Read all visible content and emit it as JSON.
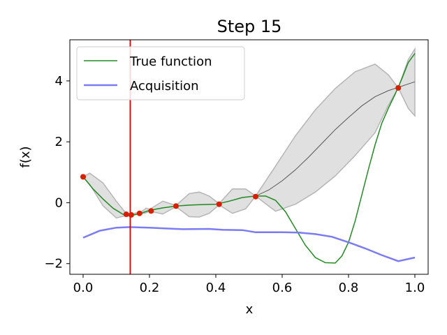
{
  "chart_data": {
    "type": "line",
    "title": "Step 15",
    "xlabel": "x",
    "ylabel": "f(x)",
    "xlim": [
      -0.04,
      1.04
    ],
    "ylim": [
      -2.35,
      5.35
    ],
    "x_ticks": [
      0.0,
      0.2,
      0.4,
      0.6,
      0.8,
      1.0
    ],
    "x_tick_labels": [
      "0.0",
      "0.2",
      "0.4",
      "0.6",
      "0.8",
      "1.0"
    ],
    "y_ticks": [
      -2,
      0,
      2,
      4
    ],
    "y_tick_labels": [
      "−2",
      "0",
      "2",
      "4"
    ],
    "grid": false,
    "legend_position": "upper-left",
    "colors": {
      "true_function": "#228b22",
      "acquisition": "#7b7bf5",
      "gp_mean": "#555555",
      "band_fill": "#e0e0e0",
      "band_edge": "#b5b5b5",
      "observed": "#d62000",
      "next_query": "#e00000"
    },
    "series": [
      {
        "name": "True function",
        "x": [
          0.0,
          0.03,
          0.06,
          0.09,
          0.12,
          0.14,
          0.17,
          0.2,
          0.24,
          0.28,
          0.32,
          0.36,
          0.4,
          0.44,
          0.48,
          0.52,
          0.55,
          0.58,
          0.61,
          0.64,
          0.67,
          0.7,
          0.73,
          0.76,
          0.78,
          0.8,
          0.82,
          0.84,
          0.86,
          0.88,
          0.9,
          0.92,
          0.94,
          0.96,
          0.98,
          1.0
        ],
        "y": [
          0.85,
          0.45,
          0.12,
          -0.18,
          -0.38,
          -0.42,
          -0.36,
          -0.25,
          -0.17,
          -0.11,
          -0.08,
          -0.06,
          -0.05,
          0.05,
          0.17,
          0.22,
          0.22,
          0.08,
          -0.3,
          -0.85,
          -1.4,
          -1.8,
          -1.97,
          -1.98,
          -1.75,
          -1.3,
          -0.6,
          0.25,
          1.1,
          1.9,
          2.6,
          3.1,
          3.55,
          4.05,
          4.6,
          4.9
        ]
      },
      {
        "name": "Acquisition",
        "x": [
          0.0,
          0.05,
          0.1,
          0.14,
          0.2,
          0.3,
          0.38,
          0.42,
          0.48,
          0.52,
          0.6,
          0.65,
          0.7,
          0.75,
          0.8,
          0.85,
          0.9,
          0.95,
          1.0
        ],
        "y": [
          -1.15,
          -0.92,
          -0.82,
          -0.8,
          -0.82,
          -0.87,
          -0.86,
          -0.89,
          -0.9,
          -0.97,
          -0.97,
          -0.98,
          -1.03,
          -1.12,
          -1.3,
          -1.5,
          -1.72,
          -1.92,
          -1.8
        ]
      }
    ],
    "gp_mean": {
      "x": [
        0.0,
        0.03,
        0.06,
        0.09,
        0.12,
        0.14,
        0.17,
        0.2,
        0.24,
        0.28,
        0.32,
        0.36,
        0.4,
        0.44,
        0.48,
        0.52,
        0.56,
        0.6,
        0.64,
        0.68,
        0.72,
        0.76,
        0.8,
        0.84,
        0.88,
        0.92,
        0.95,
        0.98,
        1.0
      ],
      "y": [
        0.85,
        0.45,
        0.12,
        -0.18,
        -0.38,
        -0.42,
        -0.36,
        -0.25,
        -0.17,
        -0.11,
        -0.08,
        -0.06,
        -0.05,
        0.05,
        0.17,
        0.22,
        0.42,
        0.72,
        1.08,
        1.5,
        1.95,
        2.4,
        2.8,
        3.18,
        3.48,
        3.68,
        3.79,
        3.9,
        3.97
      ]
    },
    "confidence_band": {
      "x": [
        0.0,
        0.02,
        0.06,
        0.1,
        0.13,
        0.14,
        0.16,
        0.17,
        0.19,
        0.2,
        0.24,
        0.28,
        0.32,
        0.35,
        0.38,
        0.41,
        0.45,
        0.49,
        0.52,
        0.58,
        0.64,
        0.7,
        0.76,
        0.82,
        0.88,
        0.92,
        0.95,
        0.98,
        1.0
      ],
      "upper": [
        0.85,
        0.97,
        0.65,
        0.05,
        -0.36,
        -0.4,
        -0.33,
        -0.34,
        -0.18,
        -0.22,
        0.05,
        -0.09,
        0.3,
        0.35,
        0.22,
        -0.03,
        0.45,
        0.45,
        0.22,
        1.2,
        2.2,
        3.05,
        3.75,
        4.3,
        4.55,
        4.2,
        3.77,
        4.7,
        5.05
      ],
      "lower": [
        0.85,
        0.6,
        -0.1,
        -0.5,
        -0.42,
        -0.44,
        -0.39,
        -0.38,
        -0.33,
        -0.28,
        -0.37,
        -0.13,
        -0.46,
        -0.47,
        -0.35,
        -0.07,
        -0.35,
        -0.2,
        0.22,
        -0.28,
        -0.05,
        0.35,
        0.88,
        1.55,
        2.3,
        3.2,
        3.77,
        3.1,
        2.85
      ]
    },
    "observations": {
      "x": [
        0.0,
        0.13,
        0.145,
        0.17,
        0.205,
        0.28,
        0.41,
        0.52,
        0.95
      ],
      "y": [
        0.85,
        -0.38,
        -0.4,
        -0.35,
        -0.27,
        -0.11,
        -0.05,
        0.2,
        3.77
      ]
    },
    "next_query_x": 0.142
  }
}
